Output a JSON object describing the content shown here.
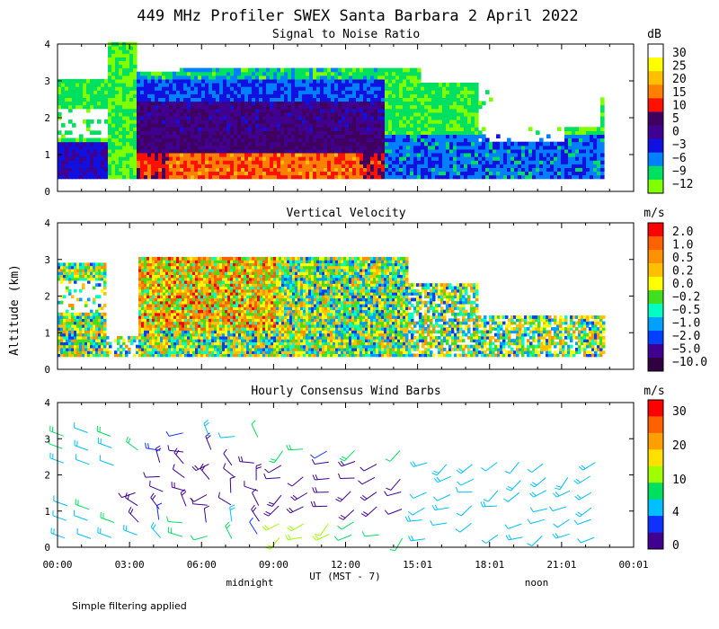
{
  "title": "449 MHz Profiler SWEX Santa Barbara  2 April 2022",
  "ylabel": "Altitude (km)",
  "xlabel": "UT  (MST - 7)",
  "x_ticks": [
    "00:00",
    "03:00",
    "06:00",
    "09:00",
    "12:00",
    "15:01",
    "18:01",
    "21:01",
    "00:01"
  ],
  "x_subticks": [
    "midnight",
    "noon"
  ],
  "footnote": "Simple filtering applied",
  "panels": [
    {
      "title": "Signal to Noise Ratio",
      "unit": "dB"
    },
    {
      "title": "Vertical Velocity",
      "unit": "m/s"
    },
    {
      "title": "Hourly Consensus Wind Barbs",
      "unit": "m/s"
    }
  ],
  "chart_data": [
    {
      "type": "heatmap",
      "title": "Signal to Noise Ratio",
      "ylabel": "Altitude (km)",
      "xlabel": "UT  (MST - 7)",
      "x_range_hours": [
        0,
        24
      ],
      "ylim": [
        0,
        4
      ],
      "y_ticks": [
        "0",
        "1",
        "2",
        "3",
        "4"
      ],
      "colorbar": {
        "unit": "dB",
        "labels": [
          "30",
          "25",
          "20",
          "15",
          "10",
          "5",
          "0",
          "−3",
          "−6",
          "−9",
          "−12"
        ],
        "colors": [
          "#ffffff",
          "#ffff00",
          "#ffc000",
          "#ff8000",
          "#ff1000",
          "#400060",
          "#400090",
          "#1010e0",
          "#0080ff",
          "#00e060",
          "#80ff00"
        ]
      }
    },
    {
      "type": "heatmap",
      "title": "Vertical Velocity",
      "ylabel": "Altitude (km)",
      "xlabel": "UT  (MST - 7)",
      "x_range_hours": [
        0,
        24
      ],
      "ylim": [
        0,
        4
      ],
      "y_ticks": [
        "0",
        "1",
        "2",
        "3",
        "4"
      ],
      "colorbar": {
        "unit": "m/s",
        "labels": [
          "2.0",
          "1.0",
          "0.5",
          "0.2",
          "0.0",
          "−0.2",
          "−0.5",
          "−1.0",
          "−2.0",
          "−5.0",
          "−10.0"
        ],
        "colors": [
          "#ff0000",
          "#ff6000",
          "#ff9000",
          "#ffc000",
          "#ffff00",
          "#40e020",
          "#00ffc0",
          "#00a0ff",
          "#0040ff",
          "#400090",
          "#300040"
        ]
      }
    },
    {
      "type": "scatter",
      "title": "Hourly Consensus Wind Barbs",
      "ylabel": "Altitude (km)",
      "xlabel": "UT  (MST - 7)",
      "x_range_hours": [
        0,
        24
      ],
      "ylim": [
        0,
        4
      ],
      "y_ticks": [
        "0",
        "1",
        "2",
        "3",
        "4"
      ],
      "colorbar": {
        "unit": "m/s",
        "labels": [
          "30",
          "20",
          "10",
          "4",
          "0"
        ],
        "colors": [
          "#ff0000",
          "#ff6000",
          "#ffa000",
          "#ffe000",
          "#a0ff00",
          "#00e060",
          "#00c0ff",
          "#1030ff",
          "#400090"
        ]
      }
    }
  ]
}
